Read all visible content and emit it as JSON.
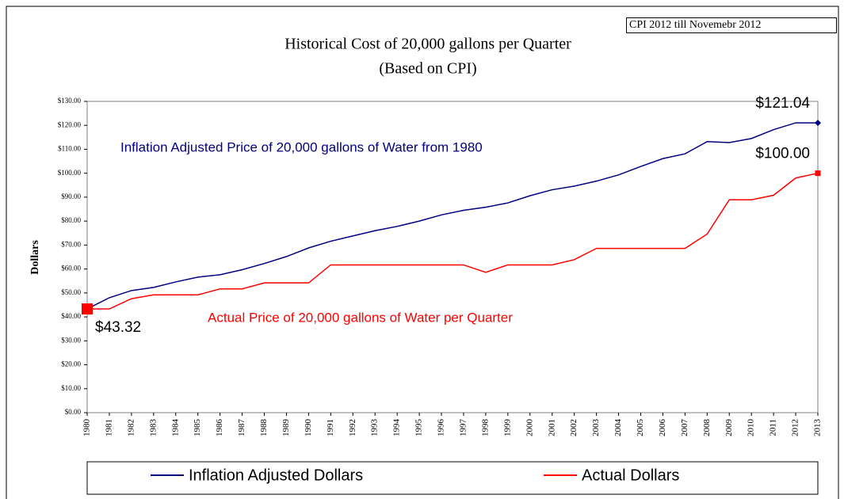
{
  "chart_data": {
    "type": "line",
    "title": "Historical Cost of 20,000 gallons per Quarter",
    "subtitle": "(Based on CPI)",
    "note": "CPI 2012 till Novemebr 2012",
    "y_label": "Dollars",
    "annotations": [
      "Inflation Adjusted Price of 20,000 gallons of Water from 1980",
      "Actual Price of 20,000 gallons of Water per Quarter"
    ],
    "categories": [
      "1980",
      "1981",
      "1982",
      "1983",
      "1984",
      "1985",
      "1986",
      "1987",
      "1988",
      "1989",
      "1990",
      "1991",
      "1992",
      "1993",
      "1994",
      "1995",
      "1996",
      "1997",
      "1998",
      "1999",
      "2000",
      "2001",
      "2002",
      "2003",
      "2004",
      "2005",
      "2006",
      "2007",
      "2008",
      "2009",
      "2010",
      "2011",
      "2012",
      "2013"
    ],
    "series": [
      {
        "name": "Inflation Adjusted Dollars",
        "color": "#000080",
        "values": [
          43.32,
          48,
          51,
          52.3,
          54.6,
          56.6,
          57.6,
          59.7,
          62.3,
          65.2,
          68.8,
          71.6,
          73.8,
          76,
          77.8,
          80,
          82.6,
          84.5,
          85.8,
          87.6,
          90.6,
          93.1,
          94.6,
          96.7,
          99.3,
          102.8,
          106.1,
          108.1,
          113.2,
          112.8,
          114.5,
          118.2,
          121.04,
          121.04
        ],
        "value_labels": [
          null,
          null,
          null,
          null,
          null,
          null,
          null,
          null,
          null,
          null,
          null,
          null,
          null,
          null,
          null,
          null,
          null,
          null,
          null,
          null,
          null,
          null,
          null,
          null,
          null,
          null,
          null,
          null,
          null,
          null,
          null,
          null,
          null,
          "$121.04"
        ]
      },
      {
        "name": "Actual Dollars",
        "color": "#ff0000",
        "values": [
          43.32,
          43.32,
          47.6,
          49.2,
          49.2,
          49.2,
          51.7,
          51.7,
          54.2,
          54.2,
          54.2,
          61.7,
          61.7,
          61.7,
          61.7,
          61.7,
          61.7,
          61.7,
          58.6,
          61.7,
          61.7,
          61.7,
          63.9,
          68.6,
          68.6,
          68.6,
          68.6,
          68.6,
          74.6,
          88.9,
          88.9,
          90.8,
          98,
          100
        ],
        "value_labels": [
          "$43.32",
          null,
          null,
          null,
          null,
          null,
          null,
          null,
          null,
          null,
          null,
          null,
          null,
          null,
          null,
          null,
          null,
          null,
          null,
          null,
          null,
          null,
          null,
          null,
          null,
          null,
          null,
          null,
          null,
          null,
          null,
          null,
          null,
          "$100.00"
        ]
      }
    ],
    "ylim": [
      0,
      130
    ],
    "yticks": [
      {
        "value": 0,
        "label": "$0.00"
      },
      {
        "value": 10,
        "label": "$10.00"
      },
      {
        "value": 20,
        "label": "$20.00"
      },
      {
        "value": 30,
        "label": "$30.00"
      },
      {
        "value": 40,
        "label": "$40.00"
      },
      {
        "value": 50,
        "label": "$50.00"
      },
      {
        "value": 60,
        "label": "$60.00"
      },
      {
        "value": 70,
        "label": "$70.00"
      },
      {
        "value": 80,
        "label": "$80.00"
      },
      {
        "value": 90,
        "label": "$90.00"
      },
      {
        "value": 100,
        "label": "$100.00"
      },
      {
        "value": 110,
        "label": "$110.00"
      },
      {
        "value": 120,
        "label": "$120.00"
      },
      {
        "value": 130,
        "label": "$130.00"
      }
    ],
    "grid": false,
    "legend": "bottom"
  }
}
